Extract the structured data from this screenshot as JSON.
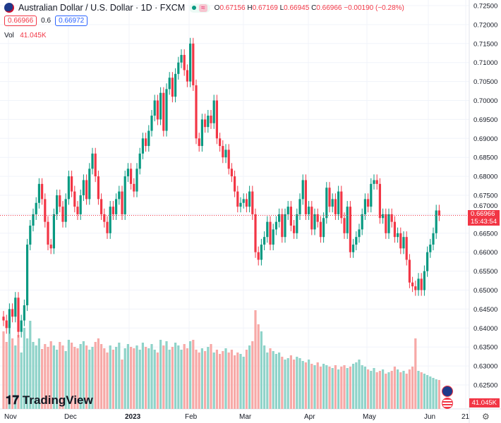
{
  "header": {
    "symbol": "Australian Dollar / U.S. Dollar · 1D · FXCM",
    "market_status": "≈",
    "o_label": "O",
    "o": "0.67156",
    "h_label": "H",
    "h": "0.67169",
    "l_label": "L",
    "l": "0.66945",
    "c_label": "C",
    "c": "0.66966",
    "change": "−0.00190 (−0.28%)"
  },
  "quote": {
    "bid": "0.66966",
    "spread": "0.6",
    "ask": "0.66972"
  },
  "volume": {
    "label": "Vol",
    "value": "41.045K"
  },
  "price_badge": {
    "price": "0.66966",
    "countdown": "15:43:54"
  },
  "volume_badge": "41.045K",
  "logo": "TradingView",
  "colors": {
    "up": "#089981",
    "down": "#f23645",
    "vol_up": "#8fd3c9",
    "vol_down": "#f7a9a7"
  },
  "chart_data": {
    "type": "candlestick",
    "y_ticks": [
      "0.72500",
      "0.72000",
      "0.71500",
      "0.71000",
      "0.70500",
      "0.70000",
      "0.69500",
      "0.69000",
      "0.68500",
      "0.68000",
      "0.67500",
      "0.67000",
      "0.66500",
      "0.66000",
      "0.65500",
      "0.65000",
      "0.64500",
      "0.64000",
      "0.63500",
      "0.63000",
      "0.62500"
    ],
    "ylim": [
      0.625,
      0.725
    ],
    "x_ticks": [
      "Nov",
      "Dec",
      "2023",
      "Feb",
      "Mar",
      "Apr",
      "May",
      "Jun",
      "21"
    ],
    "first_open": 0.643,
    "close": [
      0.642,
      0.64,
      0.645,
      0.643,
      0.648,
      0.639,
      0.642,
      0.646,
      0.662,
      0.667,
      0.67,
      0.673,
      0.678,
      0.674,
      0.668,
      0.662,
      0.661,
      0.67,
      0.675,
      0.672,
      0.668,
      0.674,
      0.68,
      0.676,
      0.672,
      0.67,
      0.675,
      0.679,
      0.674,
      0.682,
      0.686,
      0.68,
      0.674,
      0.67,
      0.668,
      0.665,
      0.672,
      0.67,
      0.674,
      0.676,
      0.67,
      0.68,
      0.682,
      0.678,
      0.676,
      0.682,
      0.686,
      0.69,
      0.688,
      0.692,
      0.696,
      0.7,
      0.695,
      0.702,
      0.692,
      0.703,
      0.706,
      0.701,
      0.707,
      0.71,
      0.712,
      0.708,
      0.705,
      0.715,
      0.704,
      0.69,
      0.688,
      0.695,
      0.693,
      0.696,
      0.694,
      0.7,
      0.69,
      0.688,
      0.685,
      0.687,
      0.682,
      0.68,
      0.676,
      0.672,
      0.673,
      0.674,
      0.672,
      0.676,
      0.67,
      0.66,
      0.658,
      0.662,
      0.664,
      0.668,
      0.662,
      0.666,
      0.668,
      0.67,
      0.664,
      0.67,
      0.672,
      0.667,
      0.665,
      0.67,
      0.674,
      0.679,
      0.67,
      0.672,
      0.666,
      0.67,
      0.668,
      0.664,
      0.669,
      0.677,
      0.672,
      0.674,
      0.67,
      0.676,
      0.669,
      0.665,
      0.672,
      0.66,
      0.662,
      0.664,
      0.666,
      0.67,
      0.674,
      0.672,
      0.678,
      0.679,
      0.678,
      0.669,
      0.67,
      0.665,
      0.67,
      0.668,
      0.664,
      0.665,
      0.661,
      0.664,
      0.658,
      0.652,
      0.651,
      0.65,
      0.653,
      0.65,
      0.655,
      0.66,
      0.662,
      0.665,
      0.671,
      0.6697
    ],
    "volume_k": [
      110,
      95,
      120,
      100,
      90,
      105,
      80,
      115,
      100,
      125,
      95,
      90,
      100,
      85,
      92,
      88,
      96,
      90,
      84,
      95,
      90,
      82,
      98,
      94,
      88,
      86,
      92,
      96,
      90,
      84,
      88,
      95,
      100,
      92,
      86,
      80,
      90,
      84,
      88,
      94,
      70,
      86,
      92,
      88,
      86,
      90,
      84,
      94,
      88,
      86,
      92,
      84,
      80,
      98,
      90,
      96,
      84,
      88,
      94,
      90,
      84,
      92,
      86,
      96,
      98,
      84,
      80,
      86,
      82,
      88,
      92,
      80,
      84,
      78,
      82,
      86,
      80,
      84,
      76,
      80,
      78,
      74,
      84,
      90,
      96,
      140,
      120,
      110,
      90,
      80,
      86,
      82,
      78,
      80,
      74,
      70,
      72,
      76,
      70,
      74,
      72,
      68,
      66,
      70,
      64,
      62,
      66,
      60,
      64,
      62,
      60,
      58,
      62,
      56,
      60,
      62,
      58,
      60,
      64,
      66,
      70,
      62,
      60,
      56,
      54,
      58,
      52,
      54,
      56,
      50,
      52,
      54,
      60,
      56,
      52,
      54,
      50,
      56,
      60,
      100,
      54,
      52,
      50,
      48,
      46,
      44,
      42,
      41.045
    ]
  }
}
